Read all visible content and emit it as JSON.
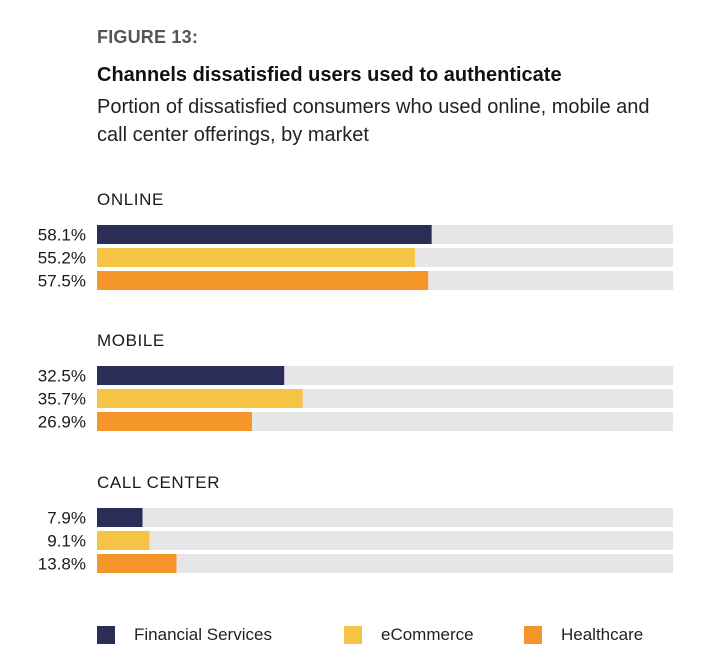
{
  "figure_label": "FIGURE 13:",
  "title": "Channels dissatisfied users used to authenticate",
  "subtitle": "Portion of dissatisfied consumers who used online, mobile and call center offerings, by market",
  "colors": {
    "financial_services": "#2b2d59",
    "ecommerce": "#f5c445",
    "healthcare": "#f5962a",
    "track": "#e6e6e8"
  },
  "chart_data": {
    "type": "bar",
    "orientation": "horizontal",
    "groups": [
      "ONLINE",
      "MOBILE",
      "CALL CENTER"
    ],
    "xlim": [
      0,
      100
    ],
    "series": [
      {
        "name": "Financial Services",
        "values": [
          58.1,
          32.5,
          7.9
        ],
        "labels": [
          "58.1%",
          "32.5%",
          "7.9%"
        ],
        "color": "#2b2d59"
      },
      {
        "name": "eCommerce",
        "values": [
          55.2,
          35.7,
          9.1
        ],
        "labels": [
          "55.2%",
          "35.7%",
          "9.1%"
        ],
        "color": "#f5c445"
      },
      {
        "name": "Healthcare",
        "values": [
          57.5,
          26.9,
          13.8
        ],
        "labels": [
          "57.5%",
          "26.9%",
          "13.8%"
        ],
        "color": "#f5962a"
      }
    ],
    "grid": false,
    "legend_position": "bottom"
  }
}
